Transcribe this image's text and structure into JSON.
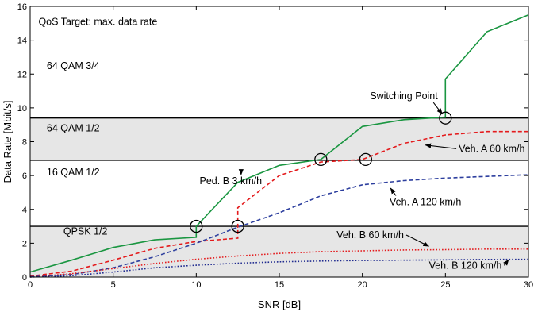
{
  "chart_data": {
    "type": "line",
    "title": "",
    "xlabel": "SNR [dB]",
    "ylabel": "Data Rate [Mbit/s]",
    "xlim": [
      0,
      30
    ],
    "ylim": [
      0,
      16
    ],
    "xticks": [
      0,
      5,
      10,
      15,
      20,
      25,
      30
    ],
    "yticks": [
      0,
      2,
      4,
      6,
      8,
      10,
      12,
      14,
      16
    ],
    "grid": false,
    "legend": "none",
    "qos_text": "QoS Target: max. data rate",
    "regions": [
      {
        "label": "QPSK 1/2",
        "y0": 0,
        "y1": 3.0,
        "shaded": true,
        "label_at": [
          2,
          2.5
        ]
      },
      {
        "label": "16 QAM 1/2",
        "y0": 3.0,
        "y1": 6.9,
        "shaded": false,
        "label_at": [
          1,
          6.0
        ]
      },
      {
        "label": "64 QAM 1/2",
        "y0": 6.9,
        "y1": 9.4,
        "shaded": true,
        "label_at": [
          1,
          8.6
        ]
      },
      {
        "label": "64 QAM 3/4",
        "y0": 9.4,
        "y1": 16,
        "shaded": false,
        "label_at": [
          1,
          12.3
        ]
      }
    ],
    "series": [
      {
        "label": "Ped. B 3 km/h",
        "color": "#1a9641",
        "style": "solid",
        "x": [
          0,
          2.5,
          5,
          7.5,
          10,
          10,
          12.5,
          15,
          17.5,
          17.5,
          20,
          22.5,
          25,
          25,
          27.5,
          30
        ],
        "y": [
          0.3,
          1.0,
          1.75,
          2.2,
          2.35,
          3.0,
          5.6,
          6.6,
          6.95,
          6.95,
          8.9,
          9.3,
          9.45,
          11.7,
          14.5,
          15.5
        ]
      },
      {
        "label": "Veh. A 60 km/h",
        "color": "#e41a1c",
        "style": "dash",
        "x": [
          0,
          2.5,
          5,
          7.5,
          10,
          12.5,
          12.5,
          15,
          17.5,
          20,
          22.5,
          25,
          27.5,
          30
        ],
        "y": [
          0.05,
          0.35,
          1.0,
          1.7,
          2.1,
          2.3,
          4.1,
          6.0,
          6.8,
          6.95,
          7.9,
          8.4,
          8.6,
          8.6
        ]
      },
      {
        "label": "Veh. A 120 km/h",
        "color": "#2c3e9e",
        "style": "dash",
        "x": [
          0,
          2.5,
          5,
          7.5,
          10,
          12.5,
          15,
          17.5,
          20,
          22.5,
          25,
          27.5,
          30
        ],
        "y": [
          0.02,
          0.15,
          0.55,
          1.2,
          2.0,
          2.95,
          3.8,
          4.8,
          5.45,
          5.7,
          5.85,
          5.95,
          6.05
        ]
      },
      {
        "label": "Veh. B 60 km/h",
        "color": "#e41a1c",
        "style": "dot",
        "x": [
          0,
          2.5,
          5,
          7.5,
          10,
          12.5,
          15,
          17.5,
          20,
          22.5,
          25,
          27.5,
          30
        ],
        "y": [
          0.0,
          0.2,
          0.5,
          0.8,
          1.05,
          1.25,
          1.4,
          1.5,
          1.55,
          1.6,
          1.62,
          1.65,
          1.65
        ]
      },
      {
        "label": "Veh. B 120 km/h",
        "color": "#1f2a8f",
        "style": "dot",
        "x": [
          0,
          2.5,
          5,
          7.5,
          10,
          12.5,
          15,
          17.5,
          20,
          22.5,
          25,
          27.5,
          30
        ],
        "y": [
          0.0,
          0.08,
          0.3,
          0.55,
          0.7,
          0.82,
          0.9,
          0.95,
          0.98,
          1.0,
          1.02,
          1.04,
          1.05
        ]
      }
    ],
    "series_annotations": [
      {
        "series": 0,
        "text_at": [
          10.2,
          5.5
        ],
        "point": [
          12.7,
          6.05
        ],
        "align": "start"
      },
      {
        "series": 1,
        "text_at": [
          25.8,
          7.4
        ],
        "point": [
          23.8,
          7.8
        ],
        "align": "start"
      },
      {
        "series": 2,
        "text_at": [
          23.8,
          4.25
        ],
        "point": [
          21.7,
          5.25
        ],
        "align": "middle"
      },
      {
        "series": 3,
        "text_at": [
          22.5,
          2.3
        ],
        "point": [
          24.0,
          1.82
        ],
        "align": "end"
      },
      {
        "series": 4,
        "text_at": [
          26.2,
          0.5
        ],
        "point": [
          28.8,
          1.02
        ],
        "align": "middle"
      }
    ],
    "switching_points": [
      {
        "x": 10,
        "y": 3.0
      },
      {
        "x": 12.5,
        "y": 3.0
      },
      {
        "x": 17.5,
        "y": 6.95
      },
      {
        "x": 20.2,
        "y": 6.95
      },
      {
        "x": 25,
        "y": 9.4
      }
    ],
    "switching_label": {
      "text": "Switching Point",
      "text_at": [
        22.5,
        10.5
      ],
      "point": [
        25,
        9.4
      ]
    }
  }
}
